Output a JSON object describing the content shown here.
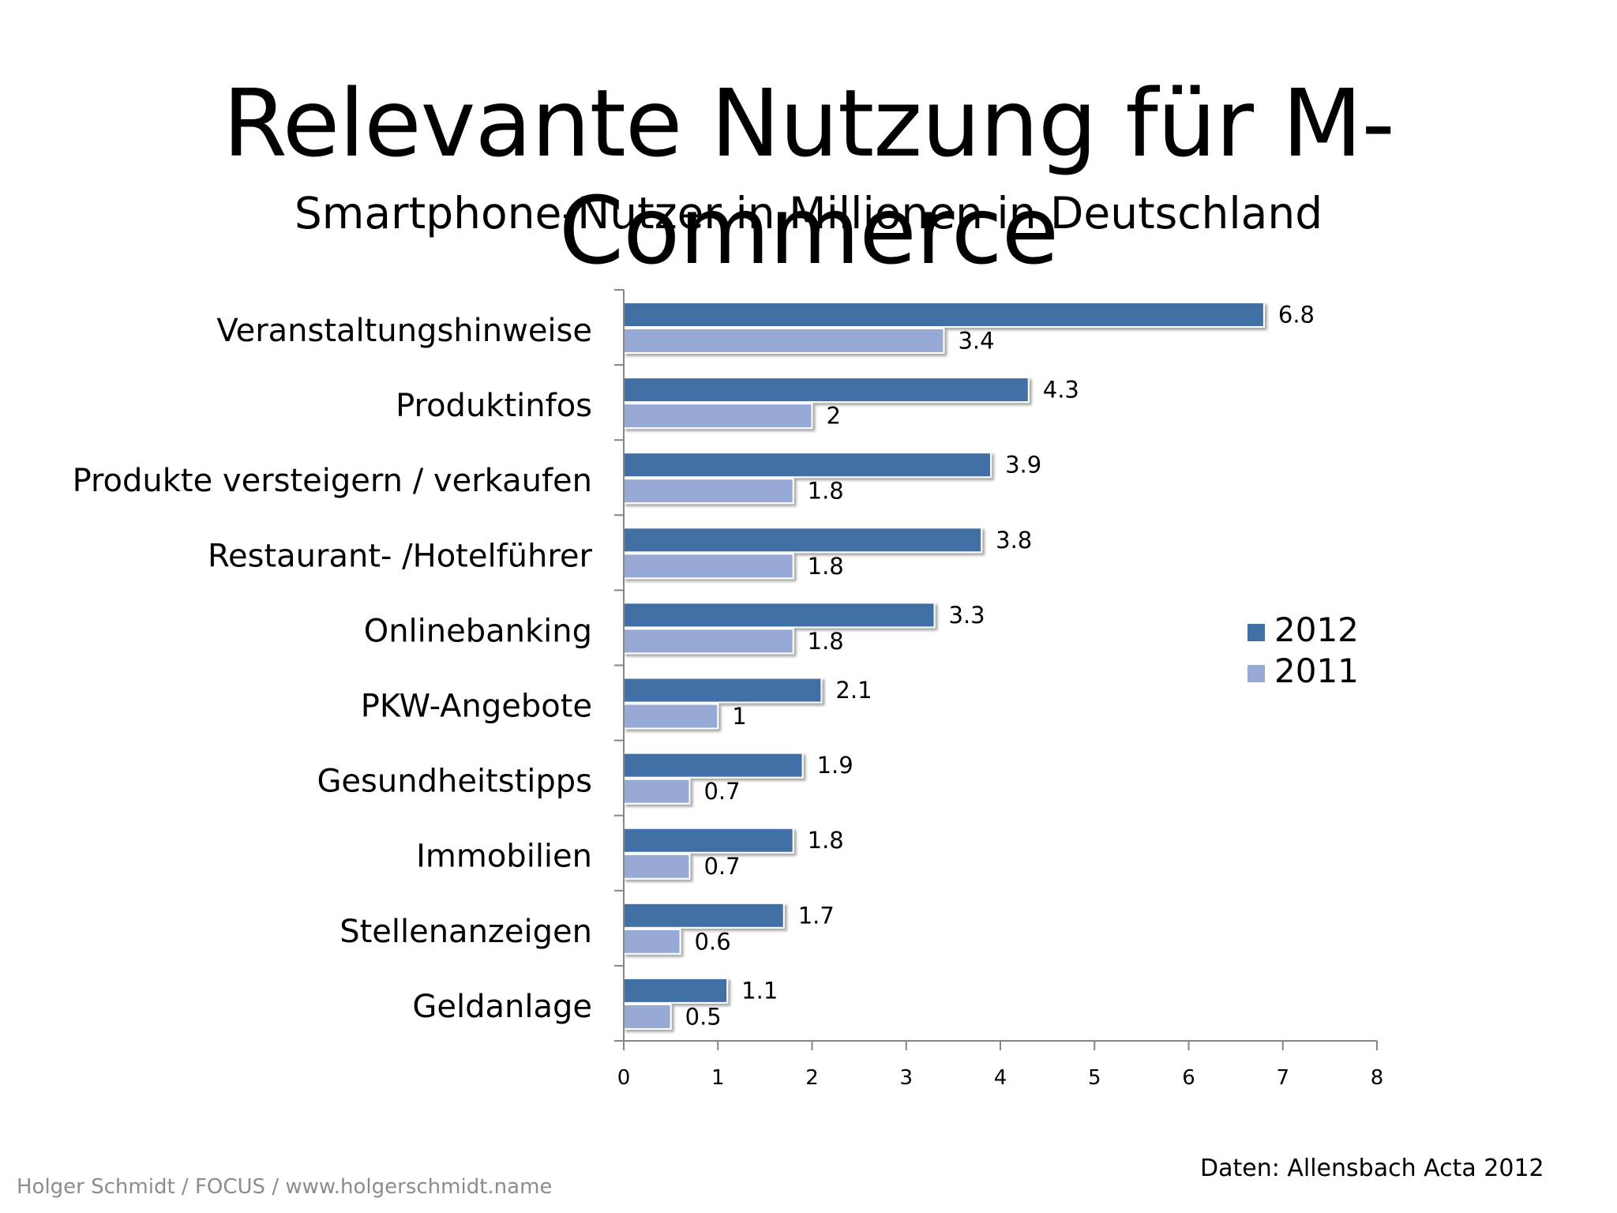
{
  "slide": {
    "title": "Relevante Nutzung für M-Commerce",
    "subtitle": "Smartphone-Nutzer in Millionen in Deutschland",
    "footer_left": "Holger Schmidt / FOCUS / www.holgerschmidt.name",
    "footer_right": "Daten: Allensbach Acta 2012"
  },
  "chart_data": {
    "type": "bar",
    "orientation": "horizontal",
    "title": "Relevante Nutzung für M-Commerce",
    "subtitle": "Smartphone-Nutzer in Millionen in Deutschland",
    "categories": [
      "Veranstaltungshinweise",
      "Produktinfos",
      "Produkte versteigern / verkaufen",
      "Restaurant- /Hotelführer",
      "Onlinebanking",
      "PKW-Angebote",
      "Gesundheitstipps",
      "Immobilien",
      "Stellenanzeigen",
      "Geldanlage"
    ],
    "series": [
      {
        "name": "2012",
        "color": "#4170a6",
        "values": [
          6.8,
          4.3,
          3.9,
          3.8,
          3.3,
          2.1,
          1.9,
          1.8,
          1.7,
          1.1
        ],
        "labels": [
          "6.8",
          "4.3",
          "3.9",
          "3.8",
          "3.3",
          "2.1",
          "1.9",
          "1.8",
          "1.7",
          "1.1"
        ]
      },
      {
        "name": "2011",
        "color": "#97aad6",
        "values": [
          3.4,
          2,
          1.8,
          1.8,
          1.8,
          1,
          0.7,
          0.7,
          0.6,
          0.5
        ],
        "labels": [
          "3.4",
          "2",
          "1.8",
          "1.8",
          "1.8",
          "1",
          "0.7",
          "0.7",
          "0.6",
          "0.5"
        ]
      }
    ],
    "xlim": [
      0,
      8
    ],
    "x_ticks": [
      "0",
      "1",
      "2",
      "3",
      "4",
      "5",
      "6",
      "7",
      "8"
    ],
    "xlabel": "",
    "ylabel": "",
    "grid": false,
    "legend_position": "right",
    "data_labels": true
  }
}
